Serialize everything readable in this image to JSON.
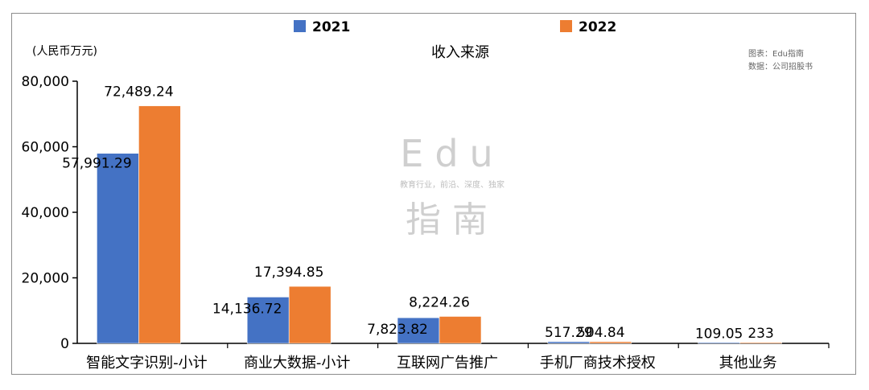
{
  "chart_data": {
    "type": "bar",
    "title": "收入来源",
    "unit_label": "(人民币万元)",
    "source_lines": [
      "图表：Edu指南",
      "数据：公司招股书"
    ],
    "watermark": {
      "main_top": "Edu",
      "tagline": "教育行业，前沿、深度、独家",
      "main_bottom": "指南"
    },
    "categories": [
      "智能文字识别-小计",
      "商业大数据-小计",
      "互联网广告推广",
      "手机厂商技术授权",
      "其他业务"
    ],
    "series": [
      {
        "name": "2021",
        "color": "#4472C4",
        "values": [
          57991.29,
          14136.72,
          7823.82,
          517.29,
          109.05
        ],
        "labels": [
          "57,991.29",
          "14,136.72",
          "7,823.82",
          "517.29",
          "109.05"
        ]
      },
      {
        "name": "2022",
        "color": "#ED7D31",
        "values": [
          72489.24,
          17394.85,
          8224.26,
          504.84,
          233
        ],
        "labels": [
          "72,489.24",
          "17,394.85",
          "8,224.26",
          "504.84",
          "233"
        ]
      }
    ],
    "ylim": [
      0,
      80000
    ],
    "yticks": [
      0,
      20000,
      40000,
      60000,
      80000
    ],
    "ytick_labels": [
      "0",
      "20,000",
      "40,000",
      "60,000",
      "80,000"
    ],
    "legend_position": "top",
    "grid": false
  }
}
